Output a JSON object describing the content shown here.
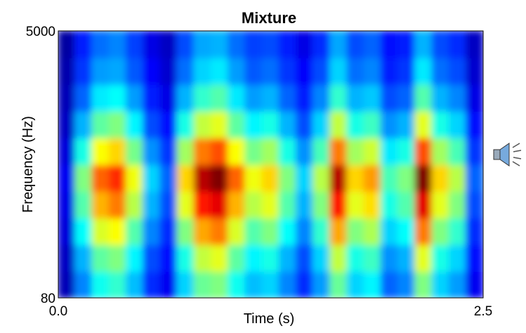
{
  "chart_data": {
    "type": "heatmap",
    "title": "Mixture",
    "xlabel": "Time (s)",
    "ylabel": "Frequency (Hz)",
    "xlim": [
      0,
      2.5
    ],
    "xticks": [
      {
        "value": 0,
        "label": "0.0"
      },
      {
        "value": 2.5,
        "label": "2.5"
      }
    ],
    "ylim": [
      80,
      5000
    ],
    "yticks": [
      80,
      5000
    ],
    "zlim": [
      0,
      0.9
    ],
    "colormap": "jet",
    "z": [
      [
        0.05,
        0.23,
        0.35,
        0.38,
        0.28,
        0.15,
        0.1,
        0.3,
        0.43,
        0.45,
        0.35,
        0.28,
        0.3,
        0.23,
        0.15,
        0.25,
        0.43,
        0.3,
        0.33,
        0.2,
        0.23,
        0.45,
        0.3,
        0.25,
        0.1
      ],
      [
        0.06,
        0.27,
        0.42,
        0.45,
        0.33,
        0.18,
        0.12,
        0.36,
        0.51,
        0.54,
        0.42,
        0.33,
        0.36,
        0.27,
        0.18,
        0.3,
        0.51,
        0.36,
        0.39,
        0.24,
        0.27,
        0.54,
        0.36,
        0.3,
        0.12
      ],
      [
        0.08,
        0.34,
        0.53,
        0.56,
        0.41,
        0.23,
        0.15,
        0.45,
        0.64,
        0.68,
        0.53,
        0.41,
        0.45,
        0.34,
        0.23,
        0.38,
        0.64,
        0.45,
        0.49,
        0.3,
        0.34,
        0.68,
        0.45,
        0.38,
        0.15
      ],
      [
        0.09,
        0.41,
        0.63,
        0.68,
        0.5,
        0.27,
        0.18,
        0.54,
        0.77,
        0.81,
        0.63,
        0.5,
        0.54,
        0.41,
        0.27,
        0.45,
        0.77,
        0.54,
        0.59,
        0.36,
        0.41,
        0.81,
        0.54,
        0.45,
        0.18
      ],
      [
        0.1,
        0.45,
        0.7,
        0.75,
        0.55,
        0.3,
        0.2,
        0.6,
        0.85,
        0.9,
        0.7,
        0.55,
        0.6,
        0.45,
        0.3,
        0.5,
        0.85,
        0.6,
        0.65,
        0.4,
        0.45,
        0.9,
        0.6,
        0.5,
        0.2
      ],
      [
        0.08,
        0.36,
        0.56,
        0.6,
        0.44,
        0.24,
        0.16,
        0.48,
        0.68,
        0.72,
        0.56,
        0.44,
        0.48,
        0.36,
        0.24,
        0.4,
        0.68,
        0.48,
        0.52,
        0.32,
        0.36,
        0.72,
        0.48,
        0.4,
        0.16
      ],
      [
        0.06,
        0.27,
        0.42,
        0.45,
        0.33,
        0.18,
        0.12,
        0.36,
        0.51,
        0.54,
        0.42,
        0.33,
        0.36,
        0.27,
        0.18,
        0.3,
        0.51,
        0.36,
        0.39,
        0.24,
        0.27,
        0.54,
        0.36,
        0.3,
        0.12
      ],
      [
        0.05,
        0.2,
        0.32,
        0.34,
        0.25,
        0.14,
        0.09,
        0.27,
        0.38,
        0.41,
        0.32,
        0.25,
        0.27,
        0.2,
        0.14,
        0.23,
        0.38,
        0.27,
        0.29,
        0.18,
        0.2,
        0.41,
        0.27,
        0.23,
        0.09
      ],
      [
        0.04,
        0.16,
        0.25,
        0.26,
        0.19,
        0.11,
        0.07,
        0.21,
        0.3,
        0.32,
        0.25,
        0.19,
        0.21,
        0.16,
        0.11,
        0.18,
        0.3,
        0.21,
        0.23,
        0.14,
        0.16,
        0.32,
        0.21,
        0.18,
        0.07
      ],
      [
        0.03,
        0.14,
        0.21,
        0.23,
        0.17,
        0.09,
        0.06,
        0.18,
        0.26,
        0.27,
        0.21,
        0.17,
        0.18,
        0.14,
        0.09,
        0.15,
        0.26,
        0.18,
        0.2,
        0.12,
        0.14,
        0.27,
        0.18,
        0.15,
        0.06
      ]
    ]
  }
}
